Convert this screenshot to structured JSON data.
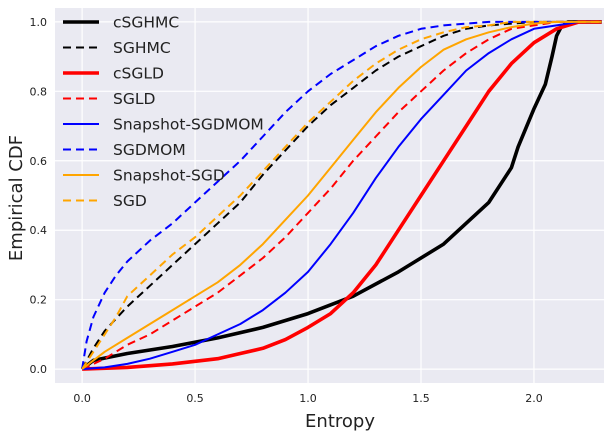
{
  "chart_data": {
    "type": "line",
    "title": "",
    "xlabel": "Entropy",
    "ylabel": "Empirical CDF",
    "xlim": [
      -0.12,
      2.31
    ],
    "ylim": [
      -0.04,
      1.04
    ],
    "xticks": [
      0.0,
      0.5,
      1.0,
      1.5,
      2.0
    ],
    "xtick_labels": [
      "0.0",
      "0.5",
      "1.0",
      "1.5",
      "2.0"
    ],
    "yticks": [
      0.0,
      0.2,
      0.4,
      0.6,
      0.8,
      1.0
    ],
    "ytick_labels": [
      "0.0",
      "0.2",
      "0.4",
      "0.6",
      "0.8",
      "1.0"
    ],
    "grid": true,
    "background": "#EAEAF2",
    "legend_position": "top-left",
    "series": [
      {
        "name": "cSGHMC",
        "color": "#000000",
        "dash": "solid",
        "width": "thick",
        "x": [
          0.0,
          0.05,
          0.2,
          0.4,
          0.6,
          0.8,
          1.0,
          1.2,
          1.4,
          1.6,
          1.8,
          1.9,
          1.93,
          2.0,
          2.05,
          2.08,
          2.1,
          2.12,
          2.15,
          2.2,
          2.3
        ],
        "y": [
          0.0,
          0.025,
          0.045,
          0.065,
          0.09,
          0.12,
          0.16,
          0.21,
          0.28,
          0.36,
          0.48,
          0.58,
          0.64,
          0.75,
          0.82,
          0.9,
          0.96,
          0.985,
          1.0,
          1.0,
          1.0
        ]
      },
      {
        "name": "SGHMC",
        "color": "#000000",
        "dash": "dashed",
        "width": "normal",
        "x": [
          0.0,
          0.05,
          0.1,
          0.2,
          0.3,
          0.4,
          0.5,
          0.6,
          0.7,
          0.8,
          0.9,
          1.0,
          1.1,
          1.2,
          1.3,
          1.4,
          1.5,
          1.6,
          1.7,
          1.8,
          1.9,
          2.0,
          2.1,
          2.2,
          2.3
        ],
        "y": [
          0.0,
          0.06,
          0.11,
          0.18,
          0.24,
          0.3,
          0.36,
          0.42,
          0.48,
          0.56,
          0.63,
          0.7,
          0.76,
          0.81,
          0.86,
          0.9,
          0.93,
          0.96,
          0.98,
          0.99,
          0.995,
          1.0,
          1.0,
          1.0,
          1.0
        ]
      },
      {
        "name": "cSGLD",
        "color": "#FF0000",
        "dash": "solid",
        "width": "thick",
        "x": [
          0.0,
          0.2,
          0.4,
          0.6,
          0.7,
          0.8,
          0.9,
          1.0,
          1.1,
          1.2,
          1.3,
          1.4,
          1.5,
          1.6,
          1.7,
          1.8,
          1.9,
          2.0,
          2.1,
          2.2,
          2.3
        ],
        "y": [
          0.0,
          0.005,
          0.015,
          0.03,
          0.045,
          0.06,
          0.085,
          0.12,
          0.16,
          0.22,
          0.3,
          0.4,
          0.5,
          0.6,
          0.7,
          0.8,
          0.88,
          0.94,
          0.98,
          1.0,
          1.0
        ]
      },
      {
        "name": "SGLD",
        "color": "#FF0000",
        "dash": "dashed",
        "width": "normal",
        "x": [
          0.0,
          0.1,
          0.2,
          0.3,
          0.4,
          0.5,
          0.6,
          0.7,
          0.8,
          0.9,
          1.0,
          1.1,
          1.2,
          1.3,
          1.4,
          1.5,
          1.6,
          1.7,
          1.8,
          1.9,
          2.0,
          2.1,
          2.2,
          2.3
        ],
        "y": [
          0.0,
          0.03,
          0.07,
          0.1,
          0.14,
          0.18,
          0.22,
          0.27,
          0.32,
          0.38,
          0.45,
          0.52,
          0.6,
          0.67,
          0.74,
          0.8,
          0.86,
          0.91,
          0.95,
          0.98,
          0.99,
          1.0,
          1.0,
          1.0
        ]
      },
      {
        "name": "Snapshot-SGDMOM",
        "color": "#0000FF",
        "dash": "solid",
        "width": "normal",
        "x": [
          0.0,
          0.1,
          0.2,
          0.3,
          0.4,
          0.5,
          0.6,
          0.7,
          0.8,
          0.9,
          1.0,
          1.1,
          1.2,
          1.3,
          1.4,
          1.5,
          1.6,
          1.7,
          1.8,
          1.9,
          2.0,
          2.1,
          2.2,
          2.3
        ],
        "y": [
          0.0,
          0.005,
          0.015,
          0.03,
          0.05,
          0.07,
          0.1,
          0.13,
          0.17,
          0.22,
          0.28,
          0.36,
          0.45,
          0.55,
          0.64,
          0.72,
          0.79,
          0.86,
          0.91,
          0.95,
          0.98,
          0.99,
          1.0,
          1.0
        ]
      },
      {
        "name": "SGDMOM",
        "color": "#0000FF",
        "dash": "dashed",
        "width": "normal",
        "x": [
          0.0,
          0.02,
          0.05,
          0.1,
          0.15,
          0.2,
          0.3,
          0.4,
          0.5,
          0.6,
          0.7,
          0.8,
          0.9,
          1.0,
          1.1,
          1.2,
          1.3,
          1.4,
          1.5,
          1.6,
          1.7,
          1.8,
          2.0,
          2.2,
          2.3
        ],
        "y": [
          0.0,
          0.08,
          0.15,
          0.22,
          0.27,
          0.31,
          0.37,
          0.42,
          0.48,
          0.54,
          0.6,
          0.67,
          0.74,
          0.8,
          0.85,
          0.89,
          0.93,
          0.96,
          0.98,
          0.99,
          0.995,
          1.0,
          1.0,
          1.0,
          1.0
        ]
      },
      {
        "name": "Snapshot-SGD",
        "color": "#FFA500",
        "dash": "solid",
        "width": "normal",
        "x": [
          0.0,
          0.1,
          0.2,
          0.3,
          0.4,
          0.5,
          0.6,
          0.7,
          0.8,
          0.9,
          1.0,
          1.1,
          1.2,
          1.3,
          1.4,
          1.5,
          1.6,
          1.7,
          1.8,
          1.9,
          2.0,
          2.1,
          2.2,
          2.3
        ],
        "y": [
          0.0,
          0.05,
          0.09,
          0.13,
          0.17,
          0.21,
          0.25,
          0.3,
          0.36,
          0.43,
          0.5,
          0.58,
          0.66,
          0.74,
          0.81,
          0.87,
          0.92,
          0.95,
          0.97,
          0.985,
          0.995,
          1.0,
          1.0,
          1.0
        ]
      },
      {
        "name": "SGD",
        "color": "#FFA500",
        "dash": "dashed",
        "width": "normal",
        "x": [
          0.0,
          0.05,
          0.1,
          0.15,
          0.2,
          0.3,
          0.4,
          0.5,
          0.6,
          0.7,
          0.8,
          0.9,
          1.0,
          1.1,
          1.2,
          1.3,
          1.4,
          1.5,
          1.6,
          1.7,
          1.8,
          1.9,
          2.0,
          2.2,
          2.3
        ],
        "y": [
          0.0,
          0.05,
          0.1,
          0.15,
          0.21,
          0.27,
          0.33,
          0.38,
          0.44,
          0.5,
          0.57,
          0.64,
          0.71,
          0.77,
          0.83,
          0.88,
          0.92,
          0.95,
          0.97,
          0.985,
          0.99,
          1.0,
          1.0,
          1.0,
          1.0
        ]
      }
    ]
  }
}
